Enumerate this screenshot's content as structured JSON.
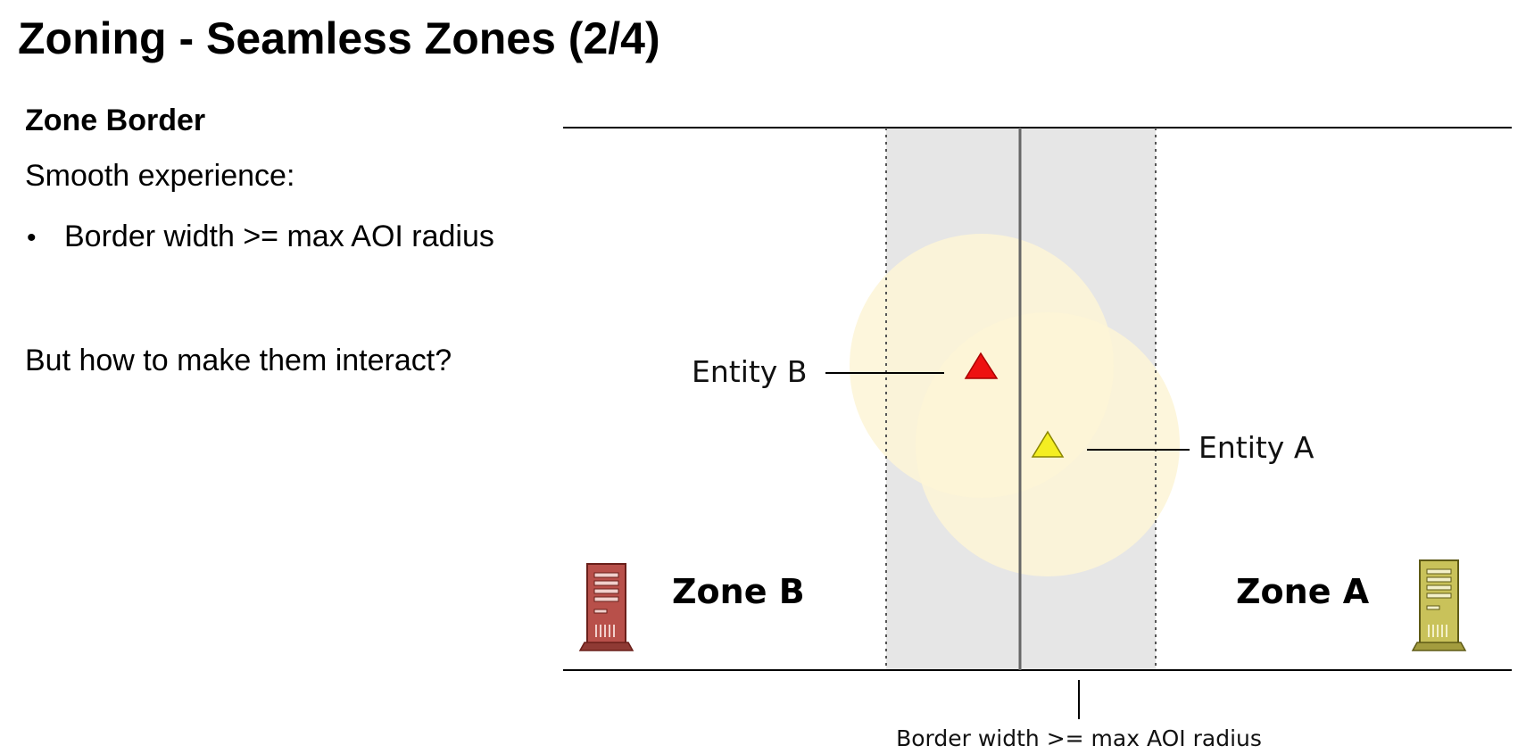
{
  "slide": {
    "title": "Zoning - Seamless Zones (2/4)",
    "subheading": "Zone Border",
    "intro": "Smooth experience:",
    "bullets": [
      "Border width >= max AOI radius"
    ],
    "question": "But how to make them interact?"
  },
  "diagram": {
    "zone_left_label": "Zone B",
    "zone_right_label": "Zone A",
    "entity_b_label": "Entity B",
    "entity_a_label": "Entity A",
    "caption": "Border width >= max AOI radius",
    "colors": {
      "border_band": "#e6e6e6",
      "aoi_circle": "#fdf4d6",
      "entity_b": "#ee1111",
      "entity_a": "#f4ee22",
      "server_left": "#b8504a",
      "server_right": "#c9c25a"
    },
    "icons": [
      "server-icon-zone-b",
      "server-icon-zone-a"
    ]
  }
}
